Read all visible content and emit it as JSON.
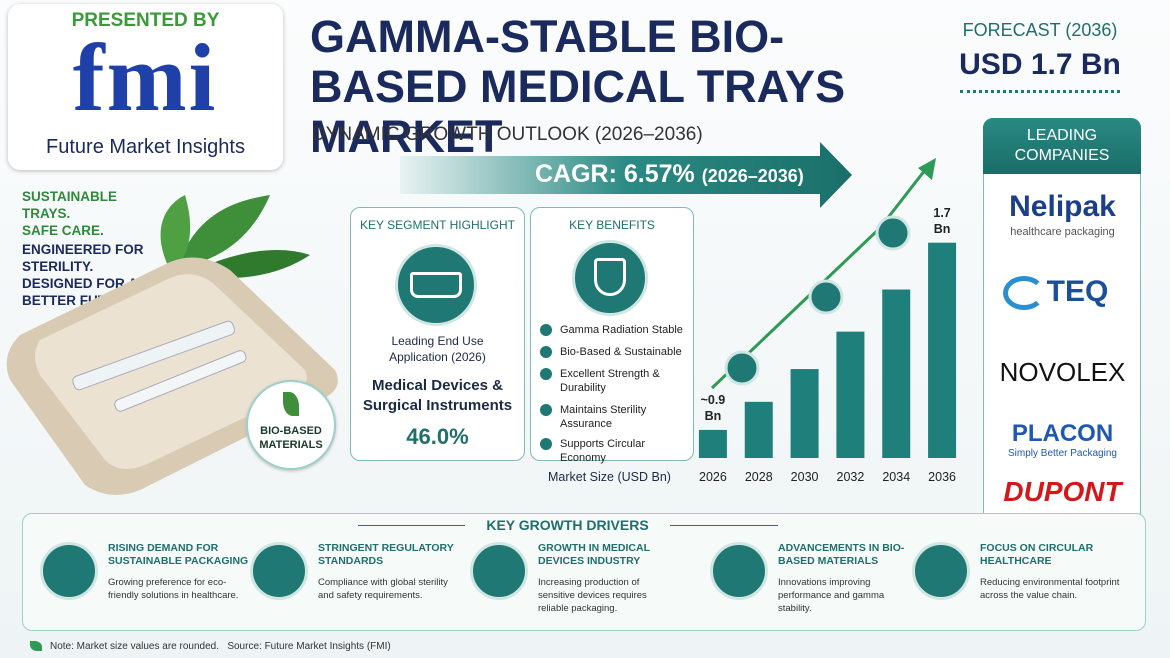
{
  "header": {
    "presented_by": "PRESENTED BY",
    "logo": "fmi",
    "logo_sub": "Future Market Insights",
    "title": "GAMMA-STABLE BIO-BASED MEDICAL TRAYS MARKET",
    "subtitle": "DYNAMIC GROWTH OUTLOOK (2026–2036)",
    "forecast_label": "FORECAST (2036)",
    "forecast_value": "USD 1.7 Bn"
  },
  "cagr": {
    "label": "CAGR: 6.57%",
    "period": "(2026–2036)"
  },
  "tagline": [
    "SUSTAINABLE TRAYS.",
    "SAFE CARE.",
    "ENGINEERED FOR STERILITY.",
    "DESIGNED FOR A BETTER FUTURE."
  ],
  "badge": "BIO-BASED MATERIALS",
  "segment": {
    "title": "KEY SEGMENT HIGHLIGHT",
    "label": "Leading End Use Application (2026)",
    "name": "Medical Devices & Surgical Instruments",
    "share": "46.0%"
  },
  "benefits": {
    "title": "KEY BENEFITS",
    "items": [
      "Gamma Radiation Stable",
      "Bio-Based & Sustainable",
      "Excellent Strength & Durability",
      "Maintains Sterility Assurance",
      "Supports Circular Economy"
    ]
  },
  "chart_data": {
    "type": "bar",
    "x_label": "Market Size (USD Bn)",
    "categories": [
      "2026",
      "2028",
      "2030",
      "2032",
      "2034",
      "2036"
    ],
    "values": [
      0.9,
      1.02,
      1.16,
      1.32,
      1.5,
      1.7
    ],
    "value_labels": [
      "~0.9 Bn",
      null,
      null,
      null,
      null,
      "1.7 Bn"
    ],
    "color": "#1f7f7a",
    "ylim": [
      0.78,
      1.75
    ]
  },
  "companies": {
    "title": "LEADING COMPANIES",
    "items": [
      {
        "name": "Nelipak",
        "tagline": "healthcare packaging"
      },
      {
        "name": "TEQ"
      },
      {
        "name": "NOVOLEX"
      },
      {
        "name": "PLACON",
        "tagline": "Simply Better Packaging"
      },
      {
        "name": "DUPONT"
      }
    ]
  },
  "drivers": {
    "title": "KEY GROWTH DRIVERS",
    "items": [
      {
        "title": "RISING DEMAND FOR SUSTAINABLE PACKAGING",
        "text": "Growing preference for eco-friendly solutions in healthcare."
      },
      {
        "title": "STRINGENT REGULATORY STANDARDS",
        "text": "Compliance with global sterility and safety requirements."
      },
      {
        "title": "GROWTH IN MEDICAL DEVICES INDUSTRY",
        "text": "Increasing production of sensitive devices requires reliable packaging."
      },
      {
        "title": "ADVANCEMENTS IN BIO-BASED MATERIALS",
        "text": "Innovations improving performance and gamma stability."
      },
      {
        "title": "FOCUS ON CIRCULAR HEALTHCARE",
        "text": "Reducing environmental footprint across the value chain."
      }
    ]
  },
  "footer": {
    "note": "Note: Market size values are rounded.",
    "source": "Source: Future Market Insights (FMI)"
  }
}
